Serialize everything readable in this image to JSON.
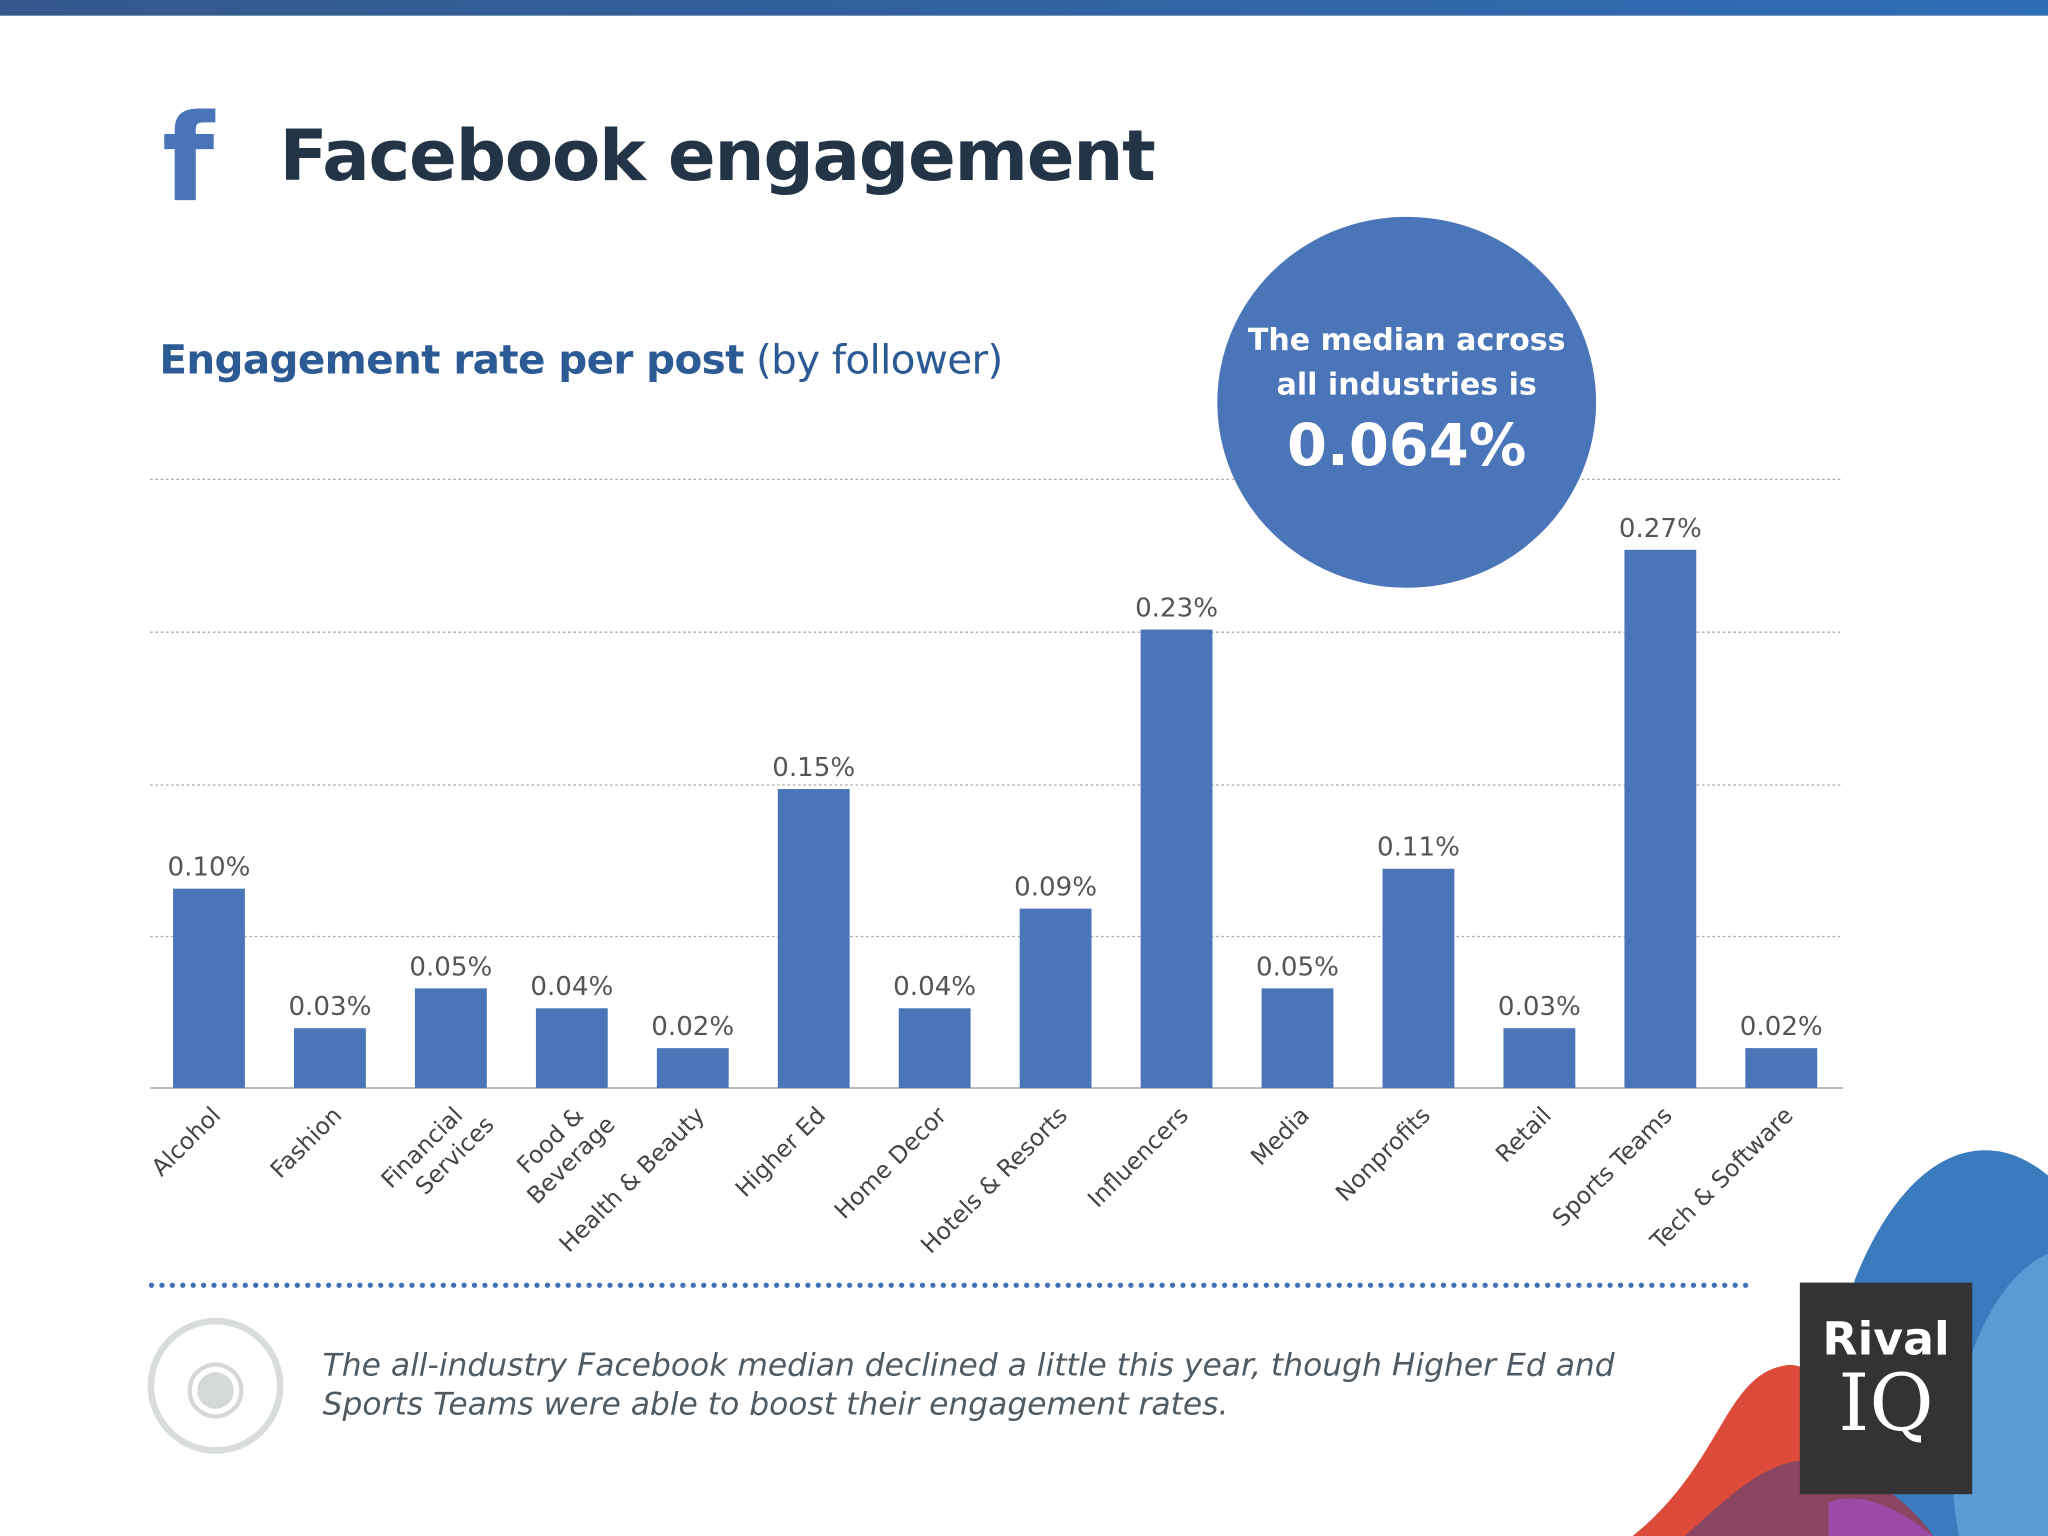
{
  "header": {
    "title": "Facebook engagement",
    "icon": "facebook-icon"
  },
  "subtitle": {
    "bold": "Engagement rate per post",
    "rest": "(by follower)"
  },
  "callout": {
    "line1": "The median across",
    "line2": "all industries is",
    "value": "0.064%"
  },
  "note": "The all-industry Facebook median declined a little this year, though Higher Ed and Sports Teams were able to boost their engagement rates.",
  "logo": {
    "line1": "Rival",
    "line2": "IQ"
  },
  "colors": {
    "bar": "#4a76b9",
    "title": "#243447",
    "accent": "#2c5a94",
    "logo_bg": "#333234"
  },
  "chart_data": {
    "type": "bar",
    "categories": [
      "Alcohol",
      "Fashion",
      "Financial Services",
      "Food & Beverage",
      "Health & Beauty",
      "Higher Ed",
      "Home Decor",
      "Hotels & Resorts",
      "Influencers",
      "Media",
      "Nonprofits",
      "Retail",
      "Sports Teams",
      "Tech & Software"
    ],
    "values": [
      0.1,
      0.03,
      0.05,
      0.04,
      0.02,
      0.15,
      0.04,
      0.09,
      0.23,
      0.05,
      0.11,
      0.03,
      0.27,
      0.02
    ],
    "labels": [
      "0.10%",
      "0.03%",
      "0.05%",
      "0.04%",
      "0.02%",
      "0.15%",
      "0.04%",
      "0.09%",
      "0.23%",
      "0.05%",
      "0.11%",
      "0.03%",
      "0.27%",
      "0.02%"
    ],
    "unit": "%",
    "grid": true,
    "ylim": [
      0,
      0.3
    ]
  }
}
